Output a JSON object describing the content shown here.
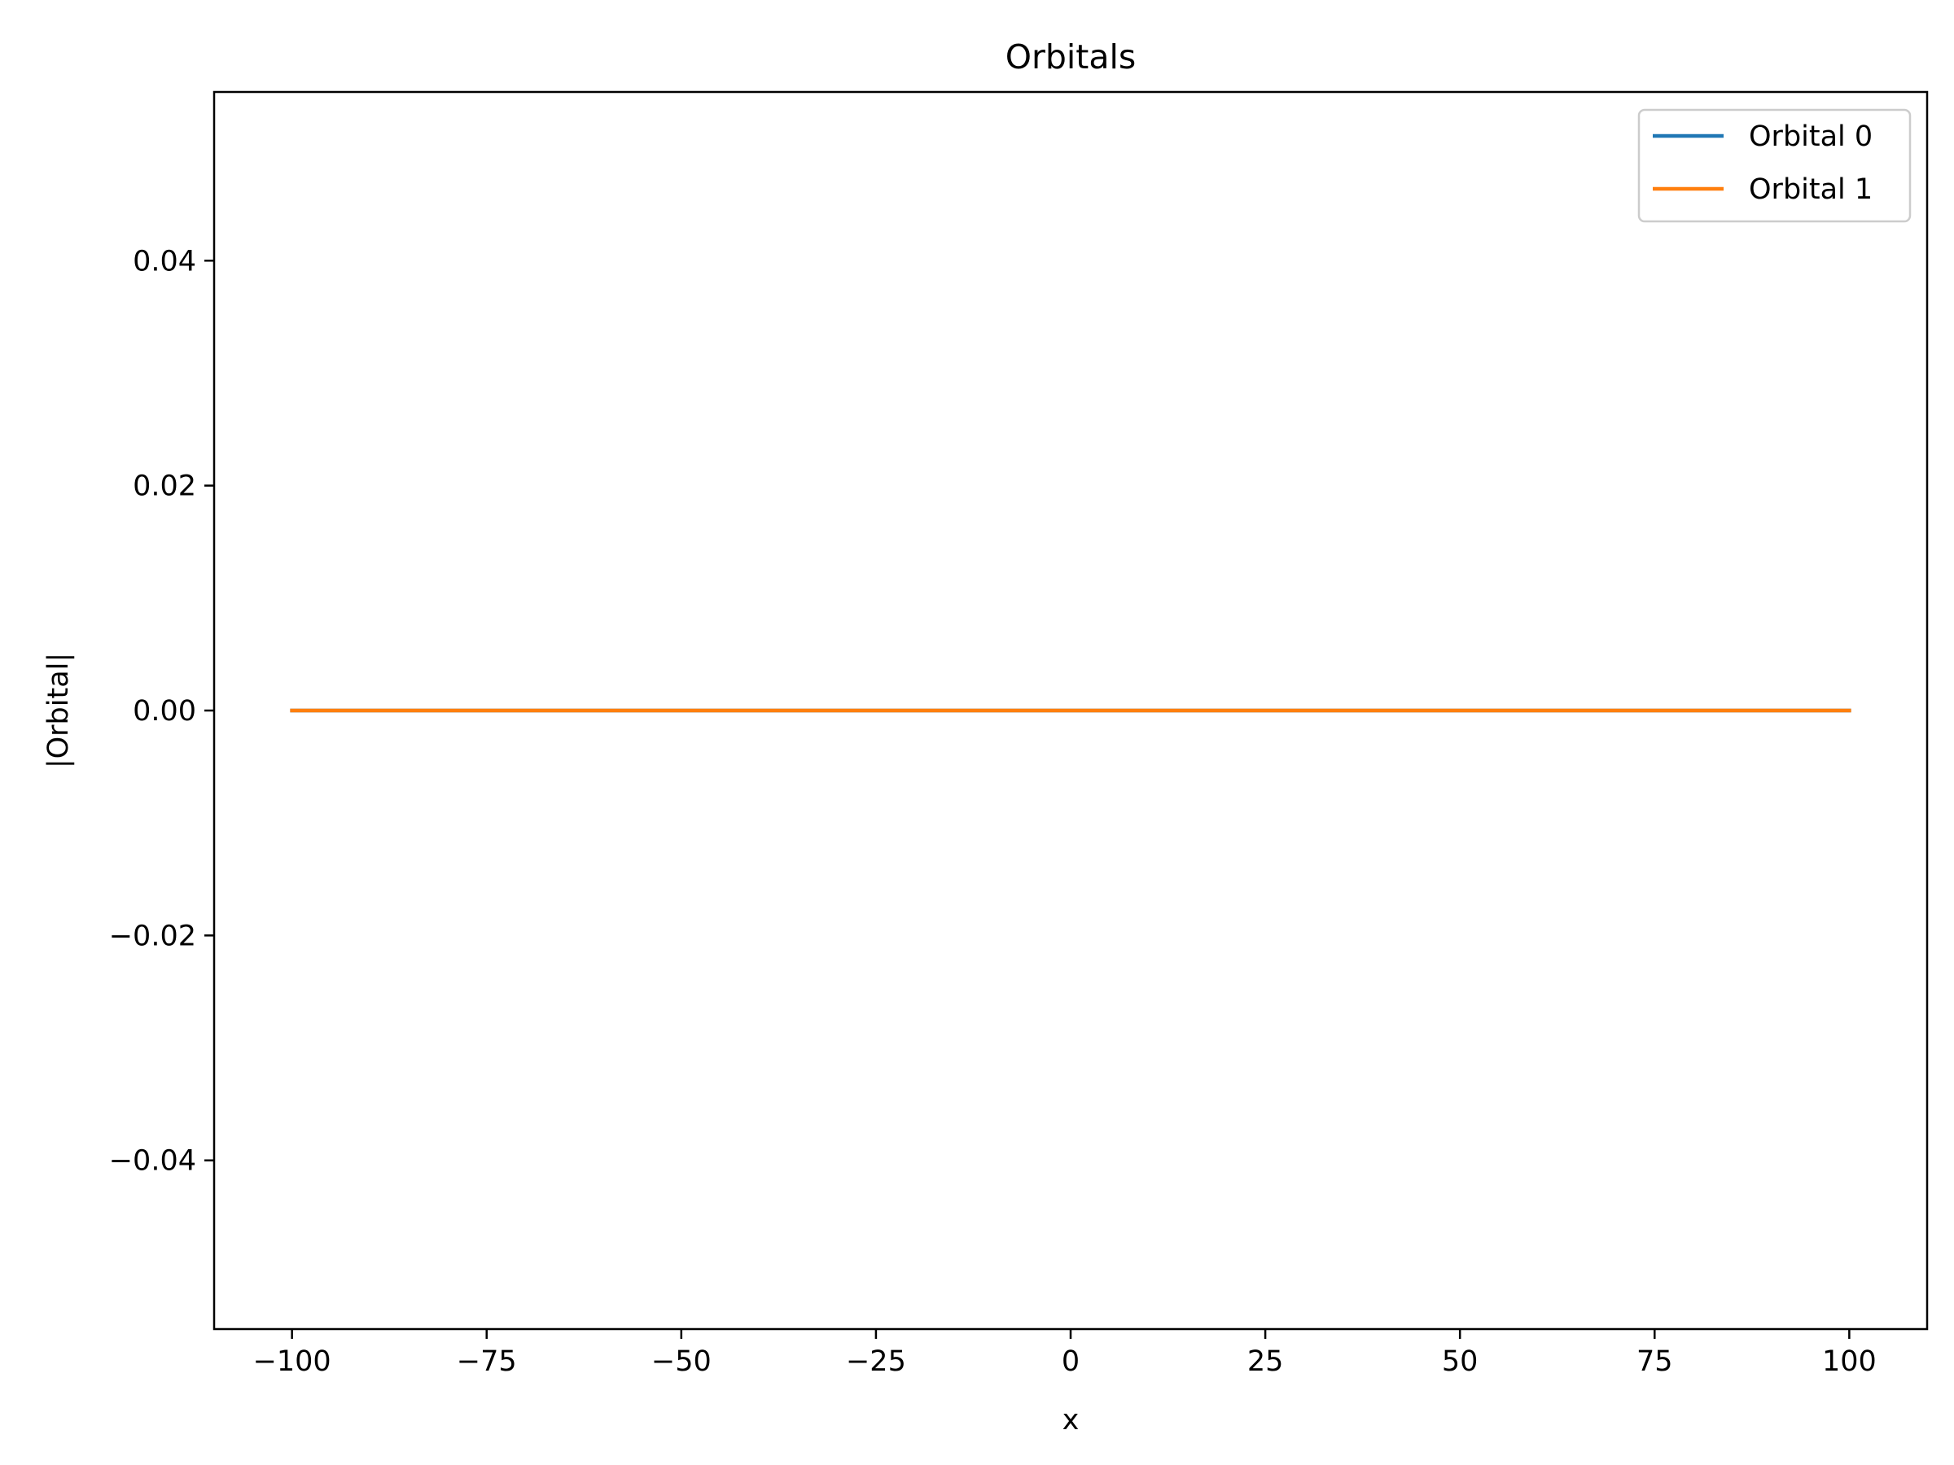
{
  "chart_data": {
    "type": "line",
    "title": "Orbitals",
    "xlabel": "x",
    "ylabel": "|Orbital|",
    "xlim": [
      -110,
      110
    ],
    "ylim": [
      -0.055,
      0.055
    ],
    "xticks": [
      -100,
      -75,
      -50,
      -25,
      0,
      25,
      50,
      75,
      100
    ],
    "xtick_labels": [
      "−100",
      "−75",
      "−50",
      "−25",
      "0",
      "25",
      "50",
      "75",
      "100"
    ],
    "yticks": [
      -0.04,
      -0.02,
      0.0,
      0.02,
      0.04
    ],
    "ytick_labels": [
      "−0.04",
      "−0.02",
      "0.00",
      "0.02",
      "0.04"
    ],
    "grid": false,
    "legend_position": "top-right",
    "series": [
      {
        "name": "Orbital 0",
        "color": "#1f77b4",
        "x": [
          -100,
          100
        ],
        "y": [
          0.0,
          0.0
        ]
      },
      {
        "name": "Orbital 1",
        "color": "#ff7f0e",
        "x": [
          -100,
          100
        ],
        "y": [
          0.0,
          0.0
        ]
      }
    ]
  }
}
